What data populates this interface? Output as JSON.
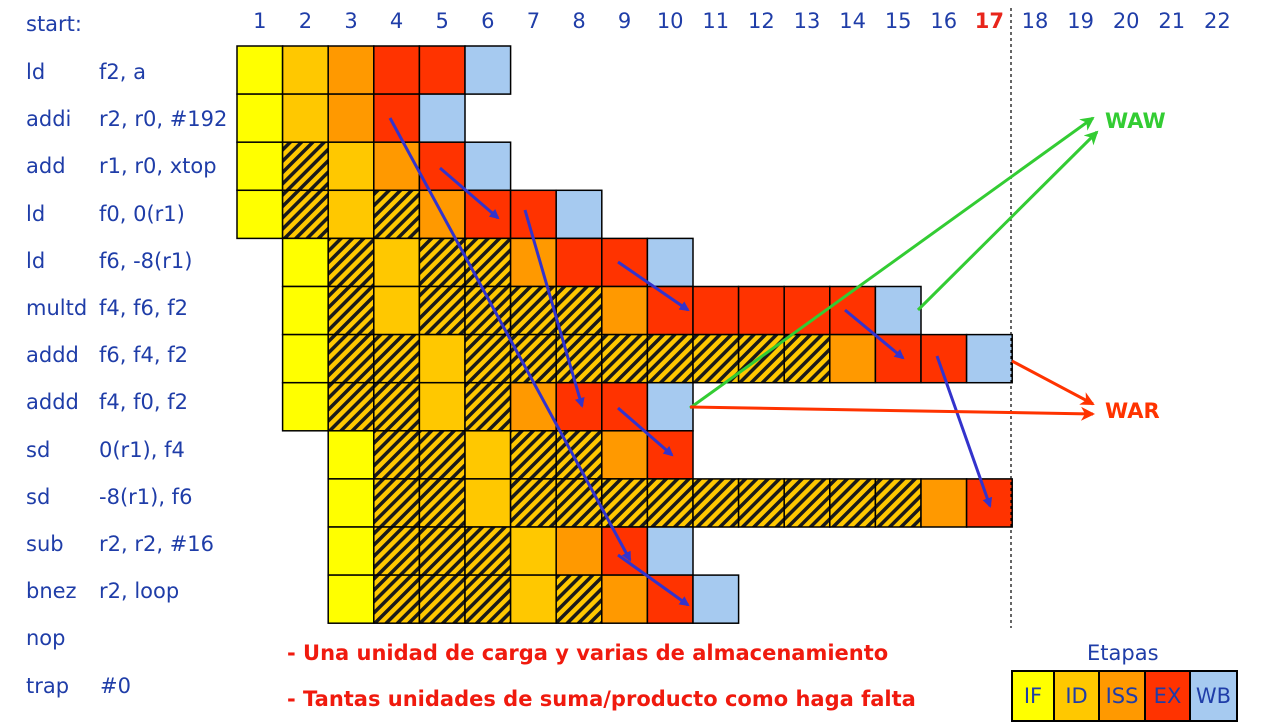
{
  "header_label": "start:",
  "cycles": [
    "1",
    "2",
    "3",
    "4",
    "5",
    "6",
    "7",
    "8",
    "9",
    "10",
    "11",
    "12",
    "13",
    "14",
    "15",
    "16",
    "17",
    "18",
    "19",
    "20",
    "21",
    "22"
  ],
  "highlight_cycle": "17",
  "stage_colors": {
    "IF": "#ffff00",
    "ID": "#ffc800",
    "ISS": "#ff9900",
    "EX": "#ff3300",
    "WB": "#a6caf0",
    "STALL": "#ffc800"
  },
  "instructions": [
    {
      "op": "ld",
      "args": "f2, a",
      "stages": [
        "IF",
        "ID",
        "ISS",
        "EX",
        "EX",
        "WB"
      ],
      "start": 1
    },
    {
      "op": "addi",
      "args": "r2, r0, #192",
      "stages": [
        "IF",
        "ID",
        "ISS",
        "EX",
        "WB"
      ],
      "start": 1
    },
    {
      "op": "add",
      "args": "r1, r0, xtop",
      "stages": [
        "IF",
        "S",
        "ID",
        "ISS",
        "EX",
        "WB"
      ],
      "start": 1
    },
    {
      "op": "ld",
      "args": "f0, 0(r1)",
      "stages": [
        "IF",
        "S",
        "ID",
        "S",
        "ISS",
        "EX",
        "EX",
        "WB"
      ],
      "start": 1
    },
    {
      "op": "ld",
      "args": "f6, -8(r1)",
      "stages": [
        "IF",
        "S",
        "ID",
        "S",
        "S",
        "ISS",
        "EX",
        "EX",
        "WB"
      ],
      "start": 2
    },
    {
      "op": "multd",
      "args": "f4, f6, f2",
      "stages": [
        "IF",
        "S",
        "ID",
        "S",
        "S",
        "S",
        "S",
        "ISS",
        "EX",
        "EX",
        "EX",
        "EX",
        "EX",
        "WB"
      ],
      "start": 2
    },
    {
      "op": "addd",
      "args": "f6, f4, f2",
      "stages": [
        "IF",
        "S",
        "S",
        "ID",
        "S",
        "S",
        "S",
        "S",
        "S",
        "S",
        "S",
        "S",
        "ISS",
        "EX",
        "EX",
        "WB"
      ],
      "start": 2
    },
    {
      "op": "addd",
      "args": "f4, f0, f2",
      "stages": [
        "IF",
        "S",
        "S",
        "ID",
        "S",
        "ISS",
        "EX",
        "EX",
        "WB"
      ],
      "start": 2
    },
    {
      "op": "sd",
      "args": "0(r1), f4",
      "stages": [
        "IF",
        "S",
        "S",
        "ID",
        "S",
        "S",
        "ISS",
        "EX"
      ],
      "start": 3
    },
    {
      "op": "sd",
      "args": "-8(r1), f6",
      "stages": [
        "IF",
        "S",
        "S",
        "ID",
        "S",
        "S",
        "S",
        "S",
        "S",
        "S",
        "S",
        "S",
        "S",
        "ISS",
        "EX"
      ],
      "start": 3
    },
    {
      "op": "sub",
      "args": "r2, r2, #16",
      "stages": [
        "IF",
        "S",
        "S",
        "S",
        "ID",
        "ISS",
        "EX",
        "WB"
      ],
      "start": 3
    },
    {
      "op": "bnez",
      "args": "r2, loop",
      "stages": [
        "IF",
        "S",
        "S",
        "S",
        "ID",
        "S",
        "ISS",
        "EX",
        "WB"
      ],
      "start": 3
    },
    {
      "op": "nop",
      "args": "",
      "stages": [],
      "start": 0
    },
    {
      "op": "trap",
      "args": "#0",
      "stages": [],
      "start": 0
    }
  ],
  "hazard_labels": {
    "waw": "WAW",
    "war": "WAR"
  },
  "hazard_colors": {
    "waw": "#33cc33",
    "war": "#ff3300",
    "dep": "#3333cc"
  },
  "notes": [
    "- Una unidad de carga y varias de almacenamiento",
    "- Tantas unidades de suma/producto como haga falta"
  ],
  "legend": {
    "title": "Etapas",
    "items": [
      "IF",
      "ID",
      "ISS",
      "EX",
      "WB"
    ]
  }
}
